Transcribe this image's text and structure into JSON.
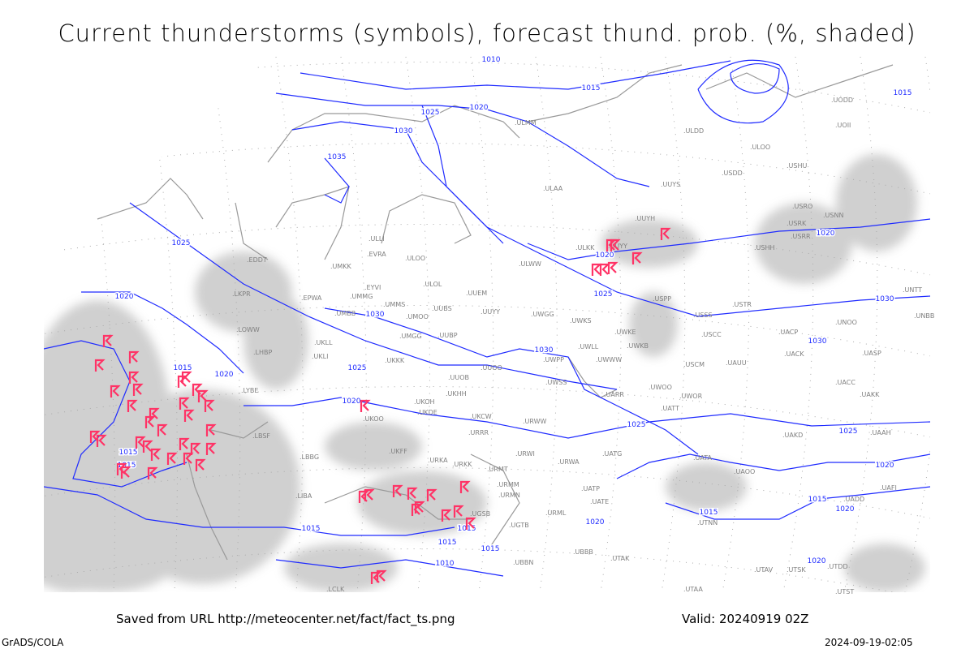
{
  "title": "Current thunderstorms (symbols), forecast thund. prob. (%, shaded)",
  "footer": {
    "saved_from": "Saved from URL http://meteocenter.net/fact/fact_ts.png",
    "valid": "Valid: 20240919 02Z",
    "software": "GrADS/COLA",
    "timestamp": "2024-09-19-02:05"
  },
  "colors": {
    "isobar": "#1f2bff",
    "thunderstorm_symbol": "#ff3366",
    "shading": "#c8c8c8",
    "station_text": "#808080",
    "coastline": "#999999"
  },
  "isobar_labels": [
    "1010",
    "1015",
    "1025",
    "1020",
    "1030",
    "1035",
    "1025",
    "1020",
    "1015",
    "1020",
    "1025",
    "1030",
    "1030",
    "1025",
    "1020",
    "1020",
    "1015",
    "1030",
    "1030",
    "1025",
    "1025",
    "1020",
    "1020",
    "1015",
    "1015",
    "1020",
    "1020",
    "1015",
    "1015",
    "1015",
    "1015",
    "1010",
    "1020",
    "1015",
    "1015"
  ],
  "stations": [
    "ULMM",
    "ULOO",
    "UODD",
    "UOII",
    "ULLI",
    "EVRA",
    "ULOO",
    "UMKK",
    "ULOL",
    "EYVI",
    "UMMG",
    "UMBB",
    "UMMS",
    "UMOO",
    "UUBS",
    "UUEM",
    "UUYY",
    "UWGG",
    "UWKS",
    "UMGG",
    "UUBP",
    "UWKE",
    "UWLL",
    "UWKB",
    "UKKK",
    "UWPP",
    "UUOO",
    "UWWW",
    "UUOB",
    "UWSS",
    "ULKK",
    "UUYY",
    "ULWW",
    "USPP",
    "USSS",
    "USCC",
    "USTR",
    "USHH",
    "USRR",
    "USRK",
    "USRO",
    "USNN",
    "UUYH",
    "UUYS",
    "ULAA",
    "USDD",
    "USHU",
    "UNOO",
    "UNTT",
    "UNBB",
    "UACP",
    "UACK",
    "UASP",
    "UACC",
    "UAKK",
    "UAKD",
    "UAAH",
    "UATT",
    "UWOR",
    "UWOO",
    "USCM",
    "UAUU",
    "UARR",
    "UATG",
    "UATA",
    "UAOO",
    "UAFI",
    "UADD",
    "UATE",
    "UATP",
    "URML",
    "URMN",
    "URMM",
    "URMT",
    "URWA",
    "URWI",
    "URWW",
    "UKDE",
    "UKOH",
    "UKHH",
    "UKCW",
    "URRR",
    "UKFF",
    "URKA",
    "URKK",
    "UKOO",
    "UGTB",
    "UGSB",
    "UBBN",
    "UBBB",
    "UTAK",
    "UTNN",
    "UTAV",
    "UTSK",
    "UTDD",
    "UTST",
    "UTAA",
    "LBSF",
    "LBBG",
    "LCLK",
    "EPWA",
    "EDDT",
    "LKPR",
    "LOWW",
    "LHBP",
    "UKLL",
    "UKLI",
    "LYBE",
    "LIBA",
    "ULDD"
  ]
}
